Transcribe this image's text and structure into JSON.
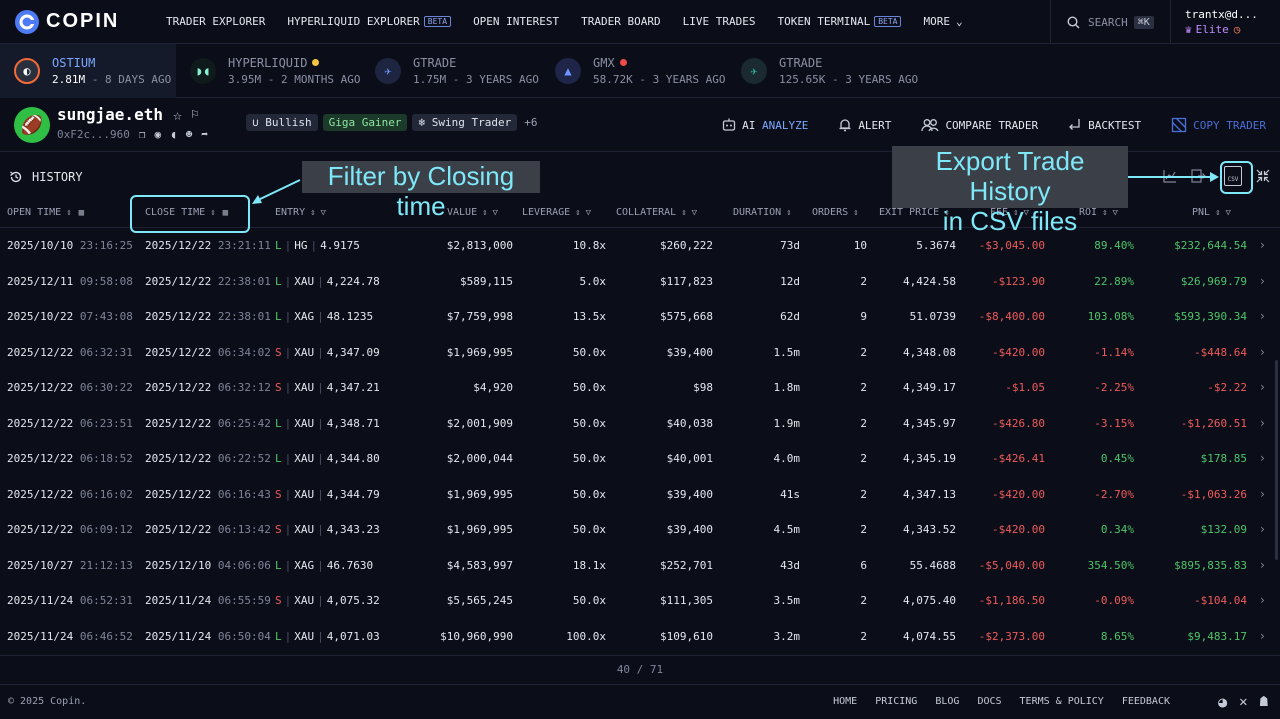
{
  "nav": {
    "logo": "COPIN",
    "items": [
      "TRADER EXPLORER",
      "HYPERLIQUID EXPLORER",
      "OPEN INTEREST",
      "TRADER BOARD",
      "LIVE TRADES",
      "TOKEN TERMINAL",
      "MORE"
    ],
    "beta": "BETA",
    "search": "SEARCH",
    "shortcut": "⌘K",
    "username": "trantx@d...",
    "tier": "Elite"
  },
  "protocols": [
    {
      "name": "OSTIUM",
      "amount": "2.81M",
      "age": "8 DAYS AGO",
      "color": "#f26b38"
    },
    {
      "name": "HYPERLIQUID",
      "amount": "3.95M",
      "age": "2 MONTHS AGO",
      "color": "#86f0d5",
      "status": "#f5c542"
    },
    {
      "name": "GTRADE",
      "amount": "1.75M",
      "age": "3 YEARS AGO",
      "color": "#3a6fe0"
    },
    {
      "name": "GMX",
      "amount": "58.72K",
      "age": "3 YEARS AGO",
      "color": "#4a72ff",
      "status": "#ef4a4a"
    },
    {
      "name": "GTRADE",
      "amount": "125.65K",
      "age": "3 YEARS AGO",
      "color": "#2bb5a5"
    }
  ],
  "trader": {
    "name": "sungjae.eth",
    "address": "0xF2c...960",
    "tags": [
      "Bullish",
      "Giga Gainer",
      "Swing Trader"
    ],
    "more_tags": "+6"
  },
  "actions": {
    "ai": "AI",
    "analyze": "ANALYZE",
    "alert": "ALERT",
    "compare": "COMPARE TRADER",
    "backtest": "BACKTEST",
    "copy": "COPY TRADER"
  },
  "history": {
    "title": "HISTORY"
  },
  "annotations": {
    "filter": "Filter by Closing time",
    "export_1": "Export Trade History",
    "export_2": "in CSV files",
    "csv": "CSV"
  },
  "columns": {
    "open_time": "OPEN TIME",
    "close_time": "CLOSE TIME",
    "entry": "ENTRY",
    "value": "VALUE",
    "leverage": "LEVERAGE",
    "collateral": "COLLATERAL",
    "duration": "DURATION",
    "orders": "ORDERS",
    "exit_price": "EXIT PRICE",
    "fee": "FEE",
    "roi": "ROI",
    "pnl": "PNL"
  },
  "rows": [
    {
      "od": "2025/10/10",
      "ot": "23:16:25",
      "cd": "2025/12/22",
      "ct": "23:21:11",
      "side": "L",
      "pair": "HG",
      "entry": "4.9175",
      "value": "$2,813,000",
      "lev": "10.8x",
      "coll": "$260,222",
      "dur": "73d",
      "orders": "10",
      "exit": "5.3674",
      "fee": "-$3,045.00",
      "roi": "89.40%",
      "pnl": "$232,644.54"
    },
    {
      "od": "2025/12/11",
      "ot": "09:58:08",
      "cd": "2025/12/22",
      "ct": "22:38:01",
      "side": "L",
      "pair": "XAU",
      "entry": "4,224.78",
      "value": "$589,115",
      "lev": "5.0x",
      "coll": "$117,823",
      "dur": "12d",
      "orders": "2",
      "exit": "4,424.58",
      "fee": "-$123.90",
      "roi": "22.89%",
      "pnl": "$26,969.79"
    },
    {
      "od": "2025/10/22",
      "ot": "07:43:08",
      "cd": "2025/12/22",
      "ct": "22:38:01",
      "side": "L",
      "pair": "XAG",
      "entry": "48.1235",
      "value": "$7,759,998",
      "lev": "13.5x",
      "coll": "$575,668",
      "dur": "62d",
      "orders": "9",
      "exit": "51.0739",
      "fee": "-$8,400.00",
      "roi": "103.08%",
      "pnl": "$593,390.34"
    },
    {
      "od": "2025/12/22",
      "ot": "06:32:31",
      "cd": "2025/12/22",
      "ct": "06:34:02",
      "side": "S",
      "pair": "XAU",
      "entry": "4,347.09",
      "value": "$1,969,995",
      "lev": "50.0x",
      "coll": "$39,400",
      "dur": "1.5m",
      "orders": "2",
      "exit": "4,348.08",
      "fee": "-$420.00",
      "roi": "-1.14%",
      "pnl": "-$448.64"
    },
    {
      "od": "2025/12/22",
      "ot": "06:30:22",
      "cd": "2025/12/22",
      "ct": "06:32:12",
      "side": "S",
      "pair": "XAU",
      "entry": "4,347.21",
      "value": "$4,920",
      "lev": "50.0x",
      "coll": "$98",
      "dur": "1.8m",
      "orders": "2",
      "exit": "4,349.17",
      "fee": "-$1.05",
      "roi": "-2.25%",
      "pnl": "-$2.22"
    },
    {
      "od": "2025/12/22",
      "ot": "06:23:51",
      "cd": "2025/12/22",
      "ct": "06:25:42",
      "side": "L",
      "pair": "XAU",
      "entry": "4,348.71",
      "value": "$2,001,909",
      "lev": "50.0x",
      "coll": "$40,038",
      "dur": "1.9m",
      "orders": "2",
      "exit": "4,345.97",
      "fee": "-$426.80",
      "roi": "-3.15%",
      "pnl": "-$1,260.51"
    },
    {
      "od": "2025/12/22",
      "ot": "06:18:52",
      "cd": "2025/12/22",
      "ct": "06:22:52",
      "side": "L",
      "pair": "XAU",
      "entry": "4,344.80",
      "value": "$2,000,044",
      "lev": "50.0x",
      "coll": "$40,001",
      "dur": "4.0m",
      "orders": "2",
      "exit": "4,345.19",
      "fee": "-$426.41",
      "roi": "0.45%",
      "pnl": "$178.85"
    },
    {
      "od": "2025/12/22",
      "ot": "06:16:02",
      "cd": "2025/12/22",
      "ct": "06:16:43",
      "side": "S",
      "pair": "XAU",
      "entry": "4,344.79",
      "value": "$1,969,995",
      "lev": "50.0x",
      "coll": "$39,400",
      "dur": "41s",
      "orders": "2",
      "exit": "4,347.13",
      "fee": "-$420.00",
      "roi": "-2.70%",
      "pnl": "-$1,063.26"
    },
    {
      "od": "2025/12/22",
      "ot": "06:09:12",
      "cd": "2025/12/22",
      "ct": "06:13:42",
      "side": "S",
      "pair": "XAU",
      "entry": "4,343.23",
      "value": "$1,969,995",
      "lev": "50.0x",
      "coll": "$39,400",
      "dur": "4.5m",
      "orders": "2",
      "exit": "4,343.52",
      "fee": "-$420.00",
      "roi": "0.34%",
      "pnl": "$132.09"
    },
    {
      "od": "2025/10/27",
      "ot": "21:12:13",
      "cd": "2025/12/10",
      "ct": "04:06:06",
      "side": "L",
      "pair": "XAG",
      "entry": "46.7630",
      "value": "$4,583,997",
      "lev": "18.1x",
      "coll": "$252,701",
      "dur": "43d",
      "orders": "6",
      "exit": "55.4688",
      "fee": "-$5,040.00",
      "roi": "354.50%",
      "pnl": "$895,835.83"
    },
    {
      "od": "2025/11/24",
      "ot": "06:52:31",
      "cd": "2025/11/24",
      "ct": "06:55:59",
      "side": "S",
      "pair": "XAU",
      "entry": "4,075.32",
      "value": "$5,565,245",
      "lev": "50.0x",
      "coll": "$111,305",
      "dur": "3.5m",
      "orders": "2",
      "exit": "4,075.40",
      "fee": "-$1,186.50",
      "roi": "-0.09%",
      "pnl": "-$104.04"
    },
    {
      "od": "2025/11/24",
      "ot": "06:46:52",
      "cd": "2025/11/24",
      "ct": "06:50:04",
      "side": "L",
      "pair": "XAU",
      "entry": "4,071.03",
      "value": "$10,960,990",
      "lev": "100.0x",
      "coll": "$109,610",
      "dur": "3.2m",
      "orders": "2",
      "exit": "4,074.55",
      "fee": "-$2,373.00",
      "roi": "8.65%",
      "pnl": "$9,483.17"
    }
  ],
  "pagination": {
    "text": "40 / 71"
  },
  "footer": {
    "copyright": "© 2025 Copin.",
    "links": [
      "HOME",
      "PRICING",
      "BLOG",
      "DOCS",
      "TERMS & POLICY",
      "FEEDBACK"
    ]
  }
}
